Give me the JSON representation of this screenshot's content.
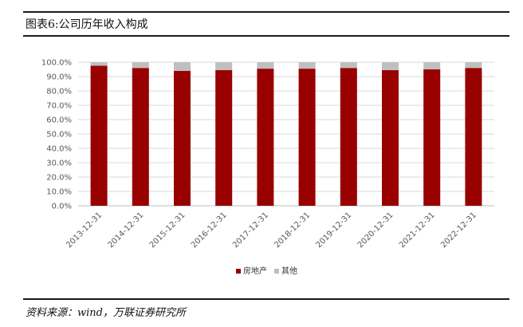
{
  "header": {
    "title": "图表6:公司历年收入构成"
  },
  "footer": {
    "source": "资料来源：wind，万联证券研究所"
  },
  "colors": {
    "real_estate": "#990000",
    "other": "#bfbfbf",
    "grid": "#d9d9d9"
  },
  "chart_data": {
    "type": "bar",
    "stacked": true,
    "title": "",
    "xlabel": "",
    "ylabel": "",
    "ylim": [
      0,
      100
    ],
    "y_tick_labels": [
      "0.0%",
      "10.0%",
      "20.0%",
      "30.0%",
      "40.0%",
      "50.0%",
      "60.0%",
      "70.0%",
      "80.0%",
      "90.0%",
      "100.0%"
    ],
    "categories": [
      "2013-12-31",
      "2014-12-31",
      "2015-12-31",
      "2016-12-31",
      "2017-12-31",
      "2018-12-31",
      "2019-12-31",
      "2020-12-31",
      "2021-12-31",
      "2022-12-31"
    ],
    "series": [
      {
        "name": "房地产",
        "values": [
          97.5,
          96.0,
          94.0,
          94.5,
          95.5,
          95.5,
          96.0,
          94.5,
          95.0,
          96.0
        ]
      },
      {
        "name": "其他",
        "values": [
          2.5,
          4.0,
          6.0,
          5.5,
          4.5,
          4.5,
          4.0,
          5.5,
          5.0,
          4.0
        ]
      }
    ],
    "grid": true,
    "legend": "bottom"
  }
}
